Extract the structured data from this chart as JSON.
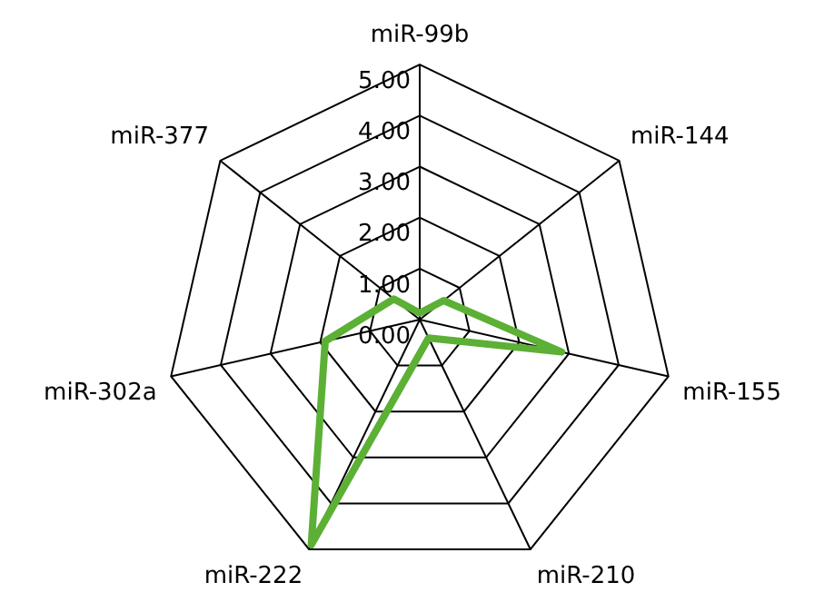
{
  "chart_data": {
    "type": "radar",
    "categories": [
      "miR-99b",
      "miR-144",
      "miR-155",
      "miR-210",
      "miR-222",
      "miR-302a",
      "miR-377"
    ],
    "series": [
      {
        "color": "#5cb035",
        "values": [
          0.13,
          0.6,
          2.85,
          0.4,
          4.9,
          1.9,
          0.65
        ]
      }
    ],
    "ylim": [
      0,
      5
    ],
    "yticks": [
      {
        "value": 0,
        "label": "0.00"
      },
      {
        "value": 1,
        "label": "1.00"
      },
      {
        "value": 2,
        "label": "2.00"
      },
      {
        "value": 3,
        "label": "3.00"
      },
      {
        "value": 4,
        "label": "4.00"
      },
      {
        "value": 5,
        "label": "5.00"
      }
    ],
    "grid": true,
    "legend": false,
    "marker": "none"
  }
}
